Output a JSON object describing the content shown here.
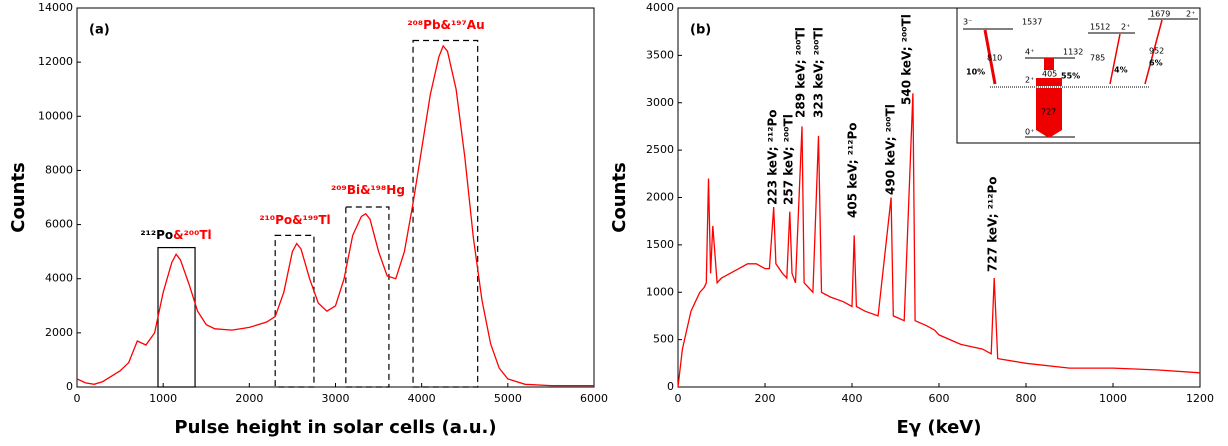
{
  "chart_data": [
    {
      "type": "line",
      "panel": "(a)",
      "xlabel": "Pulse height in solar cells (a.u.)",
      "ylabel": "Counts",
      "xlim": [
        0,
        6000
      ],
      "ylim": [
        0,
        14000
      ],
      "xticks": [
        0,
        1000,
        2000,
        3000,
        4000,
        5000,
        6000
      ],
      "yticks": [
        0,
        2000,
        4000,
        6000,
        8000,
        10000,
        12000,
        14000
      ],
      "x": [
        0,
        100,
        200,
        300,
        400,
        500,
        600,
        700,
        800,
        900,
        1000,
        1100,
        1150,
        1200,
        1300,
        1400,
        1500,
        1600,
        1800,
        2000,
        2200,
        2300,
        2400,
        2500,
        2550,
        2600,
        2700,
        2800,
        2900,
        3000,
        3100,
        3200,
        3300,
        3350,
        3400,
        3500,
        3600,
        3700,
        3800,
        3900,
        4000,
        4100,
        4200,
        4250,
        4300,
        4400,
        4500,
        4600,
        4700,
        4800,
        4900,
        5000,
        5200,
        5500,
        6000
      ],
      "series": [
        {
          "color": "#ff0000",
          "values": [
            300,
            150,
            100,
            200,
            400,
            600,
            900,
            1700,
            1550,
            2000,
            3500,
            4600,
            4900,
            4700,
            3800,
            2800,
            2300,
            2150,
            2100,
            2200,
            2400,
            2600,
            3500,
            5000,
            5300,
            5100,
            4000,
            3100,
            2800,
            3000,
            4000,
            5600,
            6300,
            6400,
            6200,
            5000,
            4100,
            4000,
            5000,
            6800,
            8800,
            10800,
            12200,
            12600,
            12400,
            11000,
            8500,
            5500,
            3200,
            1600,
            700,
            300,
            100,
            50,
            50
          ]
        }
      ],
      "regions": [
        {
          "x": [
            940,
            1370
          ],
          "y": 5150,
          "style": "solid"
        },
        {
          "x": [
            2300,
            2750
          ],
          "y": 5600,
          "style": "dashed"
        },
        {
          "x": [
            3120,
            3620
          ],
          "y": 6650,
          "style": "dashed"
        },
        {
          "x": [
            3900,
            4650
          ],
          "y": 12800,
          "style": "dashed"
        }
      ],
      "annotations": [
        {
          "parts": [
            {
              "text": "²¹²Po",
              "color": "#000000"
            },
            {
              "text": "&²⁰⁰Tl",
              "color": "#ff0000"
            }
          ]
        },
        {
          "parts": [
            {
              "text": "²¹⁰Po&¹⁹⁹Tl",
              "color": "#ff0000"
            }
          ]
        },
        {
          "parts": [
            {
              "text": "²⁰⁹Bi&¹⁹⁸Hg",
              "color": "#ff0000"
            }
          ]
        },
        {
          "parts": [
            {
              "text": "²⁰⁸Pb&¹⁹⁷Au",
              "color": "#ff0000"
            }
          ]
        }
      ]
    },
    {
      "type": "line",
      "panel": "(b)",
      "xlabel": "Eγ (keV)",
      "ylabel": "Counts",
      "xlim": [
        0,
        1200
      ],
      "ylim": [
        0,
        4000
      ],
      "xticks": [
        0,
        200,
        400,
        600,
        800,
        1000,
        1200
      ],
      "yticks": [
        0,
        500,
        1000,
        1500,
        2000,
        2500,
        3000,
        3500,
        4000
      ],
      "x": [
        0,
        10,
        20,
        30,
        40,
        50,
        60,
        65,
        70,
        75,
        80,
        90,
        100,
        120,
        140,
        160,
        180,
        200,
        210,
        220,
        225,
        240,
        250,
        257,
        262,
        270,
        285,
        290,
        300,
        310,
        323,
        330,
        350,
        380,
        400,
        405,
        410,
        430,
        460,
        490,
        495,
        520,
        540,
        545,
        570,
        590,
        600,
        650,
        700,
        720,
        727,
        735,
        800,
        900,
        1000,
        1100,
        1200
      ],
      "series": [
        {
          "color": "#ff0000",
          "values": [
            0,
            400,
            600,
            800,
            900,
            1000,
            1050,
            1100,
            2200,
            1200,
            1700,
            1100,
            1150,
            1200,
            1250,
            1300,
            1300,
            1250,
            1250,
            1900,
            1300,
            1200,
            1150,
            1850,
            1200,
            1100,
            2750,
            1100,
            1050,
            1000,
            2650,
            1000,
            950,
            900,
            850,
            1600,
            850,
            800,
            750,
            2000,
            750,
            700,
            3100,
            700,
            650,
            600,
            550,
            450,
            400,
            350,
            1150,
            300,
            250,
            200,
            200,
            180,
            150
          ]
        }
      ],
      "annotations": [
        {
          "text": "223 keV; ²¹²Po",
          "color": "#000000"
        },
        {
          "text": "257 keV; ²⁰⁰Tl",
          "color": "#ff0000"
        },
        {
          "text": "289 keV; ²⁰⁰Tl",
          "color": "#ff0000"
        },
        {
          "text": "323 keV; ²⁰⁰Tl",
          "color": "#ff0000"
        },
        {
          "text": "405 keV; ²¹²Po",
          "color": "#000000"
        },
        {
          "text": "490 keV; ²⁰⁰Tl",
          "color": "#ff0000"
        },
        {
          "text": "540 keV; ²⁰⁰Tl",
          "color": "#ff0000"
        },
        {
          "text": "727 keV; ²¹²Po",
          "color": "#000000"
        }
      ],
      "inset": {
        "labels": [
          "3⁻",
          "1537",
          "810",
          "10%",
          "4⁺",
          "1132",
          "405",
          "55%",
          "1512",
          "2⁺",
          "785",
          "4%",
          "1679",
          "2⁺",
          "952",
          "6%",
          "2⁺",
          "727",
          "0⁺"
        ]
      }
    }
  ]
}
